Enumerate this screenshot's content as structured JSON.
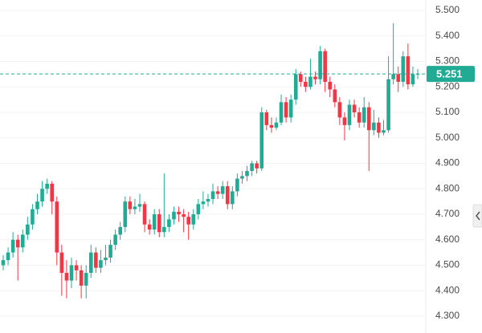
{
  "chart_data": {
    "type": "candlestick",
    "open": [
      4.5,
      4.52,
      4.55,
      4.6,
      4.57,
      4.62,
      4.66,
      4.72,
      4.75,
      4.8,
      4.82,
      4.75,
      4.55,
      4.47,
      4.44,
      4.5,
      4.48,
      4.42,
      4.47,
      4.55,
      4.49,
      4.52,
      4.53,
      4.58,
      4.62,
      4.65,
      4.75,
      4.72,
      4.73,
      4.74,
      4.66,
      4.64,
      4.7,
      4.63,
      4.65,
      4.68,
      4.71,
      4.7,
      4.69,
      4.66,
      4.7,
      4.74,
      4.75,
      4.76,
      4.79,
      4.78,
      4.81,
      4.74,
      4.79,
      4.84,
      4.85,
      4.87,
      4.9,
      4.88,
      5.1,
      5.05,
      5.04,
      5.06,
      5.14,
      5.08,
      5.15,
      5.25,
      5.22,
      5.2,
      5.24,
      5.23,
      5.34,
      5.22,
      5.19,
      5.14,
      5.08,
      5.05,
      5.13,
      5.1,
      5.06,
      5.12,
      5.03,
      5.06,
      5.02,
      5.03,
      5.23,
      5.25,
      5.22,
      5.32,
      5.21,
      5.25
    ],
    "high": [
      4.54,
      4.57,
      4.63,
      4.62,
      4.64,
      4.69,
      4.74,
      4.78,
      4.83,
      4.84,
      4.83,
      4.77,
      4.58,
      4.52,
      4.53,
      4.52,
      4.5,
      4.5,
      4.58,
      4.57,
      4.56,
      4.58,
      4.6,
      4.64,
      4.67,
      4.77,
      4.77,
      4.76,
      4.78,
      4.75,
      4.68,
      4.72,
      4.72,
      4.86,
      4.7,
      4.73,
      4.73,
      4.72,
      4.71,
      4.72,
      4.76,
      4.79,
      4.78,
      4.82,
      4.81,
      4.83,
      4.83,
      4.81,
      4.86,
      4.87,
      4.89,
      4.91,
      4.91,
      5.12,
      5.11,
      5.08,
      5.08,
      5.17,
      5.16,
      5.17,
      5.27,
      5.26,
      5.24,
      5.31,
      5.26,
      5.36,
      5.35,
      5.24,
      5.21,
      5.16,
      5.1,
      5.15,
      5.15,
      5.12,
      5.16,
      5.14,
      5.11,
      5.08,
      5.07,
      5.32,
      5.45,
      5.28,
      5.34,
      5.37,
      5.28,
      5.27
    ],
    "low": [
      4.48,
      4.5,
      4.53,
      4.44,
      4.55,
      4.6,
      4.64,
      4.7,
      4.73,
      4.78,
      4.7,
      4.5,
      4.38,
      4.37,
      4.41,
      4.44,
      4.37,
      4.37,
      4.45,
      4.47,
      4.47,
      4.5,
      4.51,
      4.56,
      4.6,
      4.63,
      4.7,
      4.7,
      4.71,
      4.63,
      4.62,
      4.62,
      4.61,
      4.61,
      4.63,
      4.66,
      4.67,
      4.63,
      4.6,
      4.64,
      4.68,
      4.72,
      4.73,
      4.74,
      4.76,
      4.76,
      4.72,
      4.72,
      4.77,
      4.82,
      4.83,
      4.85,
      4.86,
      4.87,
      5.03,
      5.02,
      5.03,
      5.05,
      5.06,
      5.06,
      5.13,
      5.2,
      5.18,
      5.19,
      5.21,
      5.21,
      5.18,
      5.16,
      5.12,
      5.05,
      4.99,
      5.03,
      5.08,
      5.04,
      5.04,
      4.87,
      5.01,
      5.0,
      5.01,
      5.02,
      5.21,
      5.18,
      5.2,
      5.19,
      5.2,
      5.23
    ],
    "close": [
      4.52,
      4.55,
      4.6,
      4.57,
      4.62,
      4.66,
      4.72,
      4.75,
      4.8,
      4.82,
      4.75,
      4.55,
      4.47,
      4.44,
      4.5,
      4.48,
      4.42,
      4.47,
      4.55,
      4.49,
      4.52,
      4.53,
      4.58,
      4.62,
      4.65,
      4.75,
      4.72,
      4.73,
      4.74,
      4.66,
      4.64,
      4.7,
      4.63,
      4.65,
      4.68,
      4.71,
      4.7,
      4.69,
      4.66,
      4.7,
      4.74,
      4.75,
      4.76,
      4.79,
      4.78,
      4.81,
      4.74,
      4.79,
      4.84,
      4.85,
      4.87,
      4.9,
      4.88,
      5.1,
      5.05,
      5.04,
      5.06,
      5.14,
      5.08,
      5.15,
      5.25,
      5.22,
      5.2,
      5.24,
      5.23,
      5.34,
      5.22,
      5.19,
      5.14,
      5.08,
      5.05,
      5.13,
      5.1,
      5.06,
      5.12,
      5.03,
      5.06,
      5.02,
      5.03,
      5.23,
      5.25,
      5.22,
      5.32,
      5.21,
      5.25,
      5.251
    ],
    "up_color": "#22ab94",
    "down_color": "#f23645",
    "last_price": 5.251,
    "ylim": [
      4.234,
      5.541
    ],
    "yticks": [
      {
        "value": 4.3,
        "label": "4.300"
      },
      {
        "value": 4.4,
        "label": "4.400"
      },
      {
        "value": 4.5,
        "label": "4.500"
      },
      {
        "value": 4.6,
        "label": "4.600"
      },
      {
        "value": 4.7,
        "label": "4.700"
      },
      {
        "value": 4.8,
        "label": "4.800"
      },
      {
        "value": 4.9,
        "label": "4.900"
      },
      {
        "value": 5.0,
        "label": "5.000"
      },
      {
        "value": 5.1,
        "label": "5.100"
      },
      {
        "value": 5.2,
        "label": "5.200"
      },
      {
        "value": 5.3,
        "label": "5.300"
      },
      {
        "value": 5.4,
        "label": "5.400"
      },
      {
        "value": 5.5,
        "label": "5.500"
      }
    ],
    "grid": true
  }
}
